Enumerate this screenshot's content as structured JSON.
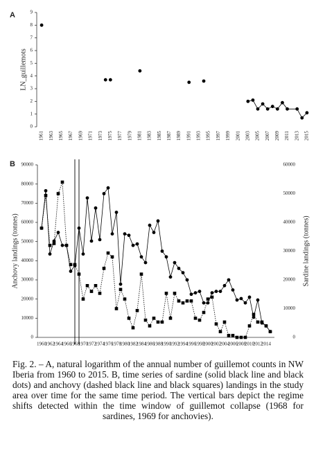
{
  "chart_data": [
    {
      "type": "line",
      "label": "A",
      "ylabel": "LN_guillemots",
      "xlim": [
        1960,
        2016
      ],
      "ylim": [
        0,
        9
      ],
      "xticks": [
        1961,
        1963,
        1965,
        1967,
        1969,
        1971,
        1973,
        1975,
        1977,
        1979,
        1981,
        1983,
        1985,
        1987,
        1989,
        1991,
        1993,
        1995,
        1997,
        1999,
        2001,
        2003,
        2005,
        2007,
        2009,
        2011,
        2013,
        2015
      ],
      "yticks": [
        0,
        1,
        2,
        3,
        4,
        5,
        6,
        7,
        8,
        9
      ],
      "series": [
        {
          "color": "#000000",
          "line": false,
          "marker": "circle",
          "x": [
            1961,
            1974,
            1975,
            1981,
            1991,
            1994
          ],
          "values": [
            8,
            3.7,
            3.7,
            4.4,
            3.5,
            3.6
          ]
        },
        {
          "color": "#000000",
          "line": true,
          "marker": "circle",
          "x": [
            2003,
            2004,
            2005,
            2006,
            2007,
            2008,
            2009,
            2010,
            2011,
            2013,
            2014,
            2015
          ],
          "values": [
            2.0,
            2.1,
            1.4,
            1.8,
            1.4,
            1.6,
            1.4,
            1.9,
            1.4,
            1.4,
            0.7,
            1.1
          ]
        }
      ]
    },
    {
      "type": "line",
      "label": "B",
      "ylabel": "Anchovy landings (tonnes)",
      "y2label": "Sardine landings (tonnes)",
      "xlim": [
        1959,
        2016
      ],
      "ylim": [
        0,
        90000
      ],
      "y2lim": [
        0,
        60000
      ],
      "xticks": [
        1960,
        1962,
        1964,
        1966,
        1968,
        1970,
        1972,
        1974,
        1976,
        1978,
        1980,
        1982,
        1984,
        1986,
        1988,
        1990,
        1992,
        1994,
        1996,
        1998,
        2000,
        2002,
        2004,
        2006,
        2008,
        2010,
        2012,
        2014
      ],
      "yticks": [
        0,
        10000,
        20000,
        30000,
        40000,
        50000,
        60000,
        70000,
        80000,
        90000
      ],
      "y2ticks": [
        0,
        10000,
        20000,
        30000,
        40000,
        50000,
        60000
      ],
      "regime_shifts": [
        1968,
        1969
      ],
      "x": [
        1960,
        1961,
        1962,
        1963,
        1964,
        1965,
        1966,
        1967,
        1968,
        1969,
        1970,
        1971,
        1972,
        1973,
        1974,
        1975,
        1976,
        1977,
        1978,
        1979,
        1980,
        1981,
        1982,
        1983,
        1984,
        1985,
        1986,
        1987,
        1988,
        1989,
        1990,
        1991,
        1992,
        1993,
        1994,
        1995,
        1996,
        1997,
        1998,
        1999,
        2000,
        2001,
        2002,
        2003,
        2004,
        2005,
        2006,
        2007,
        2008,
        2009,
        2010,
        2011,
        2012,
        2013,
        2014,
        2015
      ],
      "series": [
        {
          "color": "#000000",
          "line": true,
          "dashed": true,
          "marker": "square",
          "values": [
            57000,
            74000,
            48000,
            49000,
            75000,
            81000,
            48000,
            38000,
            38000,
            33000,
            20000,
            27000,
            24000,
            27000,
            23000,
            36000,
            44000,
            42000,
            15000,
            25000,
            20000,
            10000,
            5000,
            14000,
            33000,
            9000,
            6000,
            10000,
            8000,
            8000,
            23000,
            10000,
            23000,
            19000,
            18000,
            19000,
            19000,
            10000,
            9000,
            13000,
            20000,
            21000,
            7000,
            3000,
            8000,
            1000,
            1000,
            0,
            0,
            0,
            6000,
            12000,
            8000,
            8000,
            6000,
            3000
          ]
        },
        {
          "color": "#000000",
          "line": true,
          "dashed": false,
          "marker": "circle",
          "axis": "y2",
          "values": [
            38000,
            51000,
            29000,
            33500,
            36500,
            32000,
            32000,
            23000,
            25000,
            38000,
            29000,
            48500,
            33500,
            45000,
            34000,
            50000,
            52000,
            36000,
            43500,
            18500,
            36000,
            35500,
            32000,
            32500,
            28000,
            26000,
            39000,
            36500,
            40500,
            30000,
            28000,
            21000,
            26000,
            24000,
            22500,
            20000,
            15000,
            15500,
            16000,
            12000,
            12000,
            15500,
            16000,
            16000,
            18000,
            20000,
            16500,
            13000,
            13500,
            12000,
            14000,
            7000,
            13000,
            5000,
            4000,
            2000
          ]
        }
      ]
    }
  ],
  "caption": "Fig. 2. – A, natural logarithm of the annual number of guillemot counts in NW Iberia from 1960 to 2015. B, time series of sardine (solid black line and black dots) and anchovy (dashed black line and black squares) landings in the study area over time for the same time period. The vertical bars depict the regime shifts detected within the time window of guillemot collapse (1968 for sardines, 1969 for anchovies)."
}
